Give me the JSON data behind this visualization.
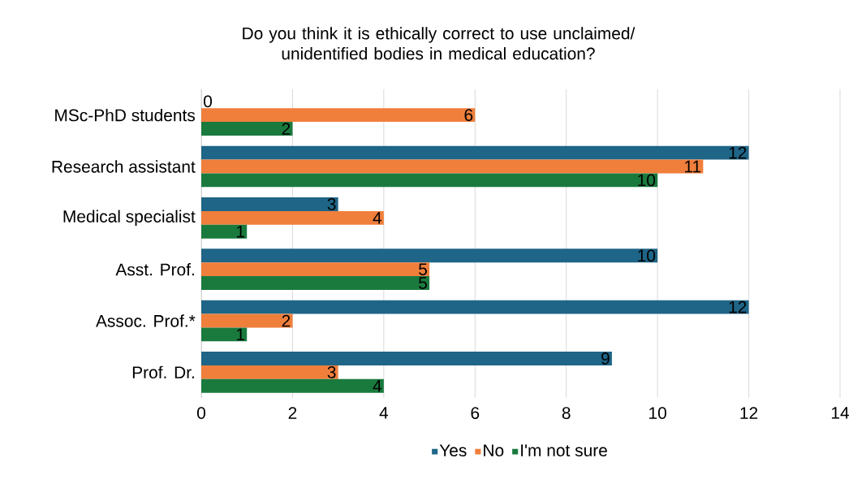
{
  "chart_data": {
    "type": "bar",
    "orientation": "horizontal",
    "title": "Do you think it is ethically correct to use unclaimed/ unidentified bodies in medical education?",
    "categories": [
      "MSc-PhD students",
      "Research assistant",
      "Medical specialist",
      "Asst. Prof.",
      "Assoc. Prof.*",
      "Prof. Dr."
    ],
    "series": [
      {
        "name": "Yes",
        "color": "#1f6587",
        "values": [
          0,
          12,
          3,
          10,
          12,
          9
        ]
      },
      {
        "name": "No",
        "color": "#f07f3c",
        "values": [
          6,
          11,
          4,
          5,
          2,
          3
        ]
      },
      {
        "name": "I'm not sure",
        "color": "#1a7a3e",
        "values": [
          2,
          10,
          1,
          5,
          1,
          4
        ]
      }
    ],
    "xlim": [
      0,
      14
    ],
    "xticks": [
      0,
      2,
      4,
      6,
      8,
      10,
      12,
      14
    ],
    "grid": "x",
    "legend": "bottom",
    "data_labels": true
  }
}
